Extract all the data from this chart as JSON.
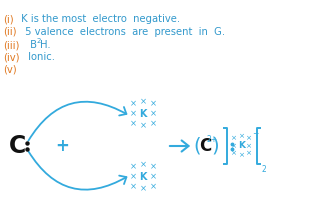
{
  "roman_color": "#e07820",
  "blue_color": "#3399cc",
  "black_color": "#111111",
  "cyan_color": "#33aadd",
  "bg_color": "#ffffff",
  "line1_roman": "(i)",
  "line1_text": " K is the most  electro  negative.",
  "line2_roman": "(ii)",
  "line2_text": " 5 valence  electrons  are  present  in  G.",
  "line3_roman": "(iii)",
  "line3_text": " B",
  "line3_sub": "2",
  "line3_end": "H.",
  "line4_roman": "(iv)",
  "line4_text": " Ionic.",
  "line5_roman": "(v)"
}
